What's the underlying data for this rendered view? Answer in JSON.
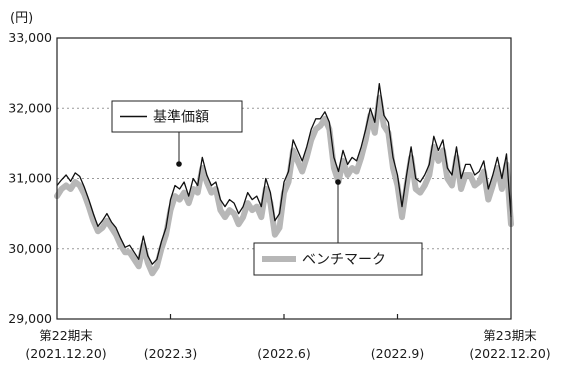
{
  "chart_data": {
    "type": "line",
    "y_unit": "(円)",
    "ylim": [
      29000,
      33000
    ],
    "y_ticks": [
      {
        "value": 33000,
        "label": "33,000"
      },
      {
        "value": 32000,
        "label": "32,000"
      },
      {
        "value": 31000,
        "label": "31,000"
      },
      {
        "value": 30000,
        "label": "30,000"
      },
      {
        "value": 29000,
        "label": "29,000"
      }
    ],
    "x_ticks": [
      {
        "t": 0.0,
        "line1": "第22期末",
        "line2": "(2021.12.20)"
      },
      {
        "t": 0.25,
        "line1": "",
        "line2": "(2022.3)"
      },
      {
        "t": 0.5,
        "line1": "",
        "line2": "(2022.6)"
      },
      {
        "t": 0.75,
        "line1": "",
        "line2": "(2022.9)"
      },
      {
        "t": 1.0,
        "line1": "第23期末",
        "line2": "(2022.12.20)"
      }
    ],
    "grid": "horizontal dotted",
    "series": [
      {
        "name": "基準価額",
        "color": "#111111",
        "points": [
          [
            0.0,
            30900
          ],
          [
            0.01,
            30980
          ],
          [
            0.02,
            31050
          ],
          [
            0.03,
            30960
          ],
          [
            0.04,
            31080
          ],
          [
            0.05,
            31030
          ],
          [
            0.06,
            30880
          ],
          [
            0.07,
            30700
          ],
          [
            0.08,
            30500
          ],
          [
            0.09,
            30320
          ],
          [
            0.1,
            30400
          ],
          [
            0.11,
            30500
          ],
          [
            0.12,
            30380
          ],
          [
            0.13,
            30300
          ],
          [
            0.14,
            30150
          ],
          [
            0.15,
            30020
          ],
          [
            0.16,
            30050
          ],
          [
            0.17,
            29950
          ],
          [
            0.18,
            29850
          ],
          [
            0.19,
            30180
          ],
          [
            0.2,
            29900
          ],
          [
            0.21,
            29780
          ],
          [
            0.22,
            29850
          ],
          [
            0.23,
            30100
          ],
          [
            0.24,
            30300
          ],
          [
            0.25,
            30700
          ],
          [
            0.26,
            30900
          ],
          [
            0.27,
            30850
          ],
          [
            0.28,
            30950
          ],
          [
            0.29,
            30750
          ],
          [
            0.3,
            31000
          ],
          [
            0.31,
            30900
          ],
          [
            0.32,
            31300
          ],
          [
            0.33,
            31050
          ],
          [
            0.34,
            30900
          ],
          [
            0.35,
            30950
          ],
          [
            0.36,
            30700
          ],
          [
            0.37,
            30600
          ],
          [
            0.38,
            30700
          ],
          [
            0.39,
            30650
          ],
          [
            0.4,
            30500
          ],
          [
            0.41,
            30600
          ],
          [
            0.42,
            30800
          ],
          [
            0.43,
            30700
          ],
          [
            0.44,
            30750
          ],
          [
            0.45,
            30600
          ],
          [
            0.46,
            31000
          ],
          [
            0.47,
            30800
          ],
          [
            0.48,
            30400
          ],
          [
            0.49,
            30500
          ],
          [
            0.5,
            30950
          ],
          [
            0.51,
            31100
          ],
          [
            0.52,
            31550
          ],
          [
            0.53,
            31400
          ],
          [
            0.54,
            31250
          ],
          [
            0.55,
            31450
          ],
          [
            0.56,
            31700
          ],
          [
            0.57,
            31850
          ],
          [
            0.58,
            31850
          ],
          [
            0.59,
            31950
          ],
          [
            0.6,
            31800
          ],
          [
            0.61,
            31300
          ],
          [
            0.62,
            31100
          ],
          [
            0.63,
            31400
          ],
          [
            0.64,
            31200
          ],
          [
            0.65,
            31300
          ],
          [
            0.66,
            31250
          ],
          [
            0.67,
            31450
          ],
          [
            0.68,
            31700
          ],
          [
            0.69,
            32000
          ],
          [
            0.7,
            31800
          ],
          [
            0.71,
            32350
          ],
          [
            0.72,
            31900
          ],
          [
            0.73,
            31800
          ],
          [
            0.74,
            31300
          ],
          [
            0.75,
            31050
          ],
          [
            0.76,
            30600
          ],
          [
            0.77,
            31050
          ],
          [
            0.78,
            31450
          ],
          [
            0.79,
            31000
          ],
          [
            0.8,
            30950
          ],
          [
            0.81,
            31050
          ],
          [
            0.82,
            31200
          ],
          [
            0.83,
            31600
          ],
          [
            0.84,
            31400
          ],
          [
            0.85,
            31550
          ],
          [
            0.86,
            31150
          ],
          [
            0.87,
            31050
          ],
          [
            0.88,
            31450
          ],
          [
            0.89,
            31000
          ],
          [
            0.9,
            31200
          ],
          [
            0.91,
            31200
          ],
          [
            0.92,
            31050
          ],
          [
            0.93,
            31100
          ],
          [
            0.94,
            31250
          ],
          [
            0.95,
            30850
          ],
          [
            0.96,
            31050
          ],
          [
            0.97,
            31300
          ],
          [
            0.98,
            31000
          ],
          [
            0.99,
            31350
          ],
          [
            1.0,
            30450
          ]
        ]
      },
      {
        "name": "ベンチマーク",
        "color": "#b7b7b7",
        "points": [
          [
            0.0,
            30750
          ],
          [
            0.01,
            30850
          ],
          [
            0.02,
            30900
          ],
          [
            0.03,
            30850
          ],
          [
            0.04,
            30950
          ],
          [
            0.05,
            30900
          ],
          [
            0.06,
            30780
          ],
          [
            0.07,
            30600
          ],
          [
            0.08,
            30400
          ],
          [
            0.09,
            30250
          ],
          [
            0.1,
            30300
          ],
          [
            0.11,
            30400
          ],
          [
            0.12,
            30300
          ],
          [
            0.13,
            30200
          ],
          [
            0.14,
            30050
          ],
          [
            0.15,
            29950
          ],
          [
            0.16,
            29950
          ],
          [
            0.17,
            29850
          ],
          [
            0.18,
            29750
          ],
          [
            0.19,
            30050
          ],
          [
            0.2,
            29800
          ],
          [
            0.21,
            29650
          ],
          [
            0.22,
            29750
          ],
          [
            0.23,
            30000
          ],
          [
            0.24,
            30200
          ],
          [
            0.25,
            30550
          ],
          [
            0.26,
            30750
          ],
          [
            0.27,
            30700
          ],
          [
            0.28,
            30800
          ],
          [
            0.29,
            30650
          ],
          [
            0.3,
            30850
          ],
          [
            0.31,
            30800
          ],
          [
            0.32,
            31150
          ],
          [
            0.33,
            30950
          ],
          [
            0.34,
            30800
          ],
          [
            0.35,
            30850
          ],
          [
            0.36,
            30550
          ],
          [
            0.37,
            30450
          ],
          [
            0.38,
            30550
          ],
          [
            0.39,
            30500
          ],
          [
            0.4,
            30350
          ],
          [
            0.41,
            30450
          ],
          [
            0.42,
            30650
          ],
          [
            0.43,
            30550
          ],
          [
            0.44,
            30600
          ],
          [
            0.45,
            30450
          ],
          [
            0.46,
            30850
          ],
          [
            0.47,
            30650
          ],
          [
            0.48,
            30200
          ],
          [
            0.49,
            30300
          ],
          [
            0.5,
            30800
          ],
          [
            0.51,
            30950
          ],
          [
            0.52,
            31400
          ],
          [
            0.53,
            31250
          ],
          [
            0.54,
            31100
          ],
          [
            0.55,
            31300
          ],
          [
            0.56,
            31550
          ],
          [
            0.57,
            31700
          ],
          [
            0.58,
            31750
          ],
          [
            0.59,
            31850
          ],
          [
            0.6,
            31700
          ],
          [
            0.61,
            31150
          ],
          [
            0.62,
            30950
          ],
          [
            0.63,
            31250
          ],
          [
            0.64,
            31050
          ],
          [
            0.65,
            31150
          ],
          [
            0.66,
            31100
          ],
          [
            0.67,
            31300
          ],
          [
            0.68,
            31550
          ],
          [
            0.69,
            31900
          ],
          [
            0.7,
            31650
          ],
          [
            0.71,
            32150
          ],
          [
            0.72,
            31750
          ],
          [
            0.73,
            31650
          ],
          [
            0.74,
            31150
          ],
          [
            0.75,
            30900
          ],
          [
            0.76,
            30450
          ],
          [
            0.77,
            30900
          ],
          [
            0.78,
            31300
          ],
          [
            0.79,
            30850
          ],
          [
            0.8,
            30800
          ],
          [
            0.81,
            30900
          ],
          [
            0.82,
            31050
          ],
          [
            0.83,
            31450
          ],
          [
            0.84,
            31250
          ],
          [
            0.85,
            31400
          ],
          [
            0.86,
            31000
          ],
          [
            0.87,
            30900
          ],
          [
            0.88,
            31300
          ],
          [
            0.89,
            30850
          ],
          [
            0.9,
            31050
          ],
          [
            0.91,
            31050
          ],
          [
            0.92,
            30900
          ],
          [
            0.93,
            30950
          ],
          [
            0.94,
            31100
          ],
          [
            0.95,
            30700
          ],
          [
            0.96,
            30900
          ],
          [
            0.97,
            31150
          ],
          [
            0.98,
            30850
          ],
          [
            0.99,
            31200
          ],
          [
            1.0,
            30350
          ]
        ]
      }
    ],
    "legend": [
      {
        "label": "基準価額",
        "style": "thin dark line",
        "placement": "upper-left"
      },
      {
        "label": "ベンチマーク",
        "style": "thick gray line",
        "placement": "lower-middle"
      }
    ]
  }
}
